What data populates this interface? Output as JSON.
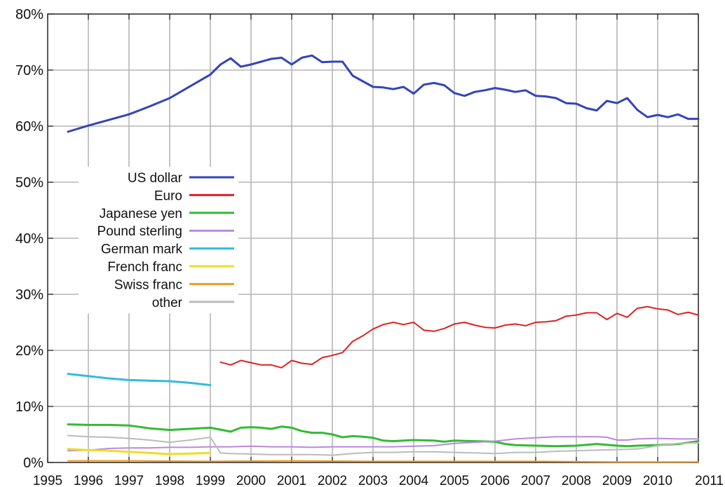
{
  "chart_data": {
    "type": "line",
    "title": "",
    "xlabel": "",
    "ylabel": "",
    "xlim": [
      1995,
      2011
    ],
    "ylim": [
      0,
      80
    ],
    "grid": true,
    "legend_position": "left-middle",
    "x_ticks": [
      "1995",
      "1996",
      "1997",
      "1998",
      "1999",
      "2000",
      "2001",
      "2002",
      "2003",
      "2004",
      "2005",
      "2006",
      "2007",
      "2008",
      "2009",
      "2010",
      "2011"
    ],
    "y_ticks": [
      "0%",
      "10%",
      "20%",
      "30%",
      "40%",
      "50%",
      "60%",
      "70%",
      "80%"
    ],
    "y_tick_values": [
      0,
      10,
      20,
      30,
      40,
      50,
      60,
      70,
      80
    ],
    "series": [
      {
        "name": "US dollar",
        "color": "#3344bb",
        "width": 3,
        "points": [
          [
            1995.5,
            59.0
          ],
          [
            1996.0,
            60.1
          ],
          [
            1996.5,
            61.1
          ],
          [
            1997.0,
            62.1
          ],
          [
            1997.5,
            63.5
          ],
          [
            1998.0,
            65.0
          ],
          [
            1998.5,
            67.1
          ],
          [
            1999.0,
            69.2
          ],
          [
            1999.25,
            71.0
          ],
          [
            1999.5,
            72.1
          ],
          [
            1999.75,
            70.6
          ],
          [
            2000.0,
            71.0
          ],
          [
            2000.25,
            71.5
          ],
          [
            2000.5,
            72.0
          ],
          [
            2000.75,
            72.2
          ],
          [
            2001.0,
            71.0
          ],
          [
            2001.25,
            72.2
          ],
          [
            2001.5,
            72.6
          ],
          [
            2001.75,
            71.4
          ],
          [
            2002.0,
            71.5
          ],
          [
            2002.25,
            71.5
          ],
          [
            2002.5,
            69.0
          ],
          [
            2002.75,
            68.0
          ],
          [
            2003.0,
            67.0
          ],
          [
            2003.25,
            66.9
          ],
          [
            2003.5,
            66.6
          ],
          [
            2003.75,
            67.0
          ],
          [
            2004.0,
            65.8
          ],
          [
            2004.25,
            67.4
          ],
          [
            2004.5,
            67.7
          ],
          [
            2004.75,
            67.3
          ],
          [
            2005.0,
            65.9
          ],
          [
            2005.25,
            65.4
          ],
          [
            2005.5,
            66.1
          ],
          [
            2005.75,
            66.4
          ],
          [
            2006.0,
            66.8
          ],
          [
            2006.25,
            66.5
          ],
          [
            2006.5,
            66.1
          ],
          [
            2006.75,
            66.4
          ],
          [
            2007.0,
            65.4
          ],
          [
            2007.25,
            65.3
          ],
          [
            2007.5,
            65.0
          ],
          [
            2007.75,
            64.1
          ],
          [
            2008.0,
            64.0
          ],
          [
            2008.25,
            63.2
          ],
          [
            2008.5,
            62.8
          ],
          [
            2008.75,
            64.5
          ],
          [
            2009.0,
            64.1
          ],
          [
            2009.25,
            65.0
          ],
          [
            2009.5,
            62.9
          ],
          [
            2009.75,
            61.6
          ],
          [
            2010.0,
            62.0
          ],
          [
            2010.25,
            61.6
          ],
          [
            2010.5,
            62.1
          ],
          [
            2010.75,
            61.3
          ],
          [
            2011.0,
            61.3
          ]
        ]
      },
      {
        "name": "Euro",
        "color": "#dd2222",
        "width": 2,
        "points": [
          [
            1999.25,
            17.9
          ],
          [
            1999.5,
            17.4
          ],
          [
            1999.75,
            18.2
          ],
          [
            2000.0,
            17.8
          ],
          [
            2000.25,
            17.4
          ],
          [
            2000.5,
            17.4
          ],
          [
            2000.75,
            16.9
          ],
          [
            2001.0,
            18.2
          ],
          [
            2001.25,
            17.7
          ],
          [
            2001.5,
            17.5
          ],
          [
            2001.75,
            18.7
          ],
          [
            2002.0,
            19.1
          ],
          [
            2002.25,
            19.6
          ],
          [
            2002.5,
            21.6
          ],
          [
            2002.75,
            22.6
          ],
          [
            2003.0,
            23.8
          ],
          [
            2003.25,
            24.6
          ],
          [
            2003.5,
            25.0
          ],
          [
            2003.75,
            24.6
          ],
          [
            2004.0,
            25.0
          ],
          [
            2004.25,
            23.6
          ],
          [
            2004.5,
            23.4
          ],
          [
            2004.75,
            23.9
          ],
          [
            2005.0,
            24.7
          ],
          [
            2005.25,
            25.0
          ],
          [
            2005.5,
            24.5
          ],
          [
            2005.75,
            24.1
          ],
          [
            2006.0,
            24.0
          ],
          [
            2006.25,
            24.5
          ],
          [
            2006.5,
            24.7
          ],
          [
            2006.75,
            24.4
          ],
          [
            2007.0,
            25.0
          ],
          [
            2007.25,
            25.1
          ],
          [
            2007.5,
            25.3
          ],
          [
            2007.75,
            26.1
          ],
          [
            2008.0,
            26.3
          ],
          [
            2008.25,
            26.7
          ],
          [
            2008.5,
            26.7
          ],
          [
            2008.75,
            25.5
          ],
          [
            2009.0,
            26.6
          ],
          [
            2009.25,
            25.9
          ],
          [
            2009.5,
            27.5
          ],
          [
            2009.75,
            27.8
          ],
          [
            2010.0,
            27.4
          ],
          [
            2010.25,
            27.2
          ],
          [
            2010.5,
            26.4
          ],
          [
            2010.75,
            26.8
          ],
          [
            2011.0,
            26.3
          ]
        ]
      },
      {
        "name": "Japanese yen",
        "color": "#33bb33",
        "width": 3,
        "points": [
          [
            1995.5,
            6.8
          ],
          [
            1996.0,
            6.7
          ],
          [
            1996.5,
            6.7
          ],
          [
            1997.0,
            6.6
          ],
          [
            1997.5,
            6.1
          ],
          [
            1998.0,
            5.8
          ],
          [
            1998.5,
            6.0
          ],
          [
            1999.0,
            6.2
          ],
          [
            1999.5,
            5.5
          ],
          [
            1999.75,
            6.2
          ],
          [
            2000.0,
            6.3
          ],
          [
            2000.25,
            6.2
          ],
          [
            2000.5,
            6.0
          ],
          [
            2000.75,
            6.4
          ],
          [
            2001.0,
            6.2
          ],
          [
            2001.25,
            5.6
          ],
          [
            2001.5,
            5.3
          ],
          [
            2001.75,
            5.3
          ],
          [
            2002.0,
            5.0
          ],
          [
            2002.25,
            4.5
          ],
          [
            2002.5,
            4.7
          ],
          [
            2002.75,
            4.6
          ],
          [
            2003.0,
            4.4
          ],
          [
            2003.25,
            3.9
          ],
          [
            2003.5,
            3.8
          ],
          [
            2003.75,
            3.9
          ],
          [
            2004.0,
            4.0
          ],
          [
            2004.5,
            3.9
          ],
          [
            2004.75,
            3.7
          ],
          [
            2005.0,
            3.9
          ],
          [
            2005.5,
            3.8
          ],
          [
            2006.0,
            3.7
          ],
          [
            2006.25,
            3.3
          ],
          [
            2006.5,
            3.1
          ],
          [
            2007.0,
            3.0
          ],
          [
            2007.5,
            2.9
          ],
          [
            2008.0,
            3.0
          ],
          [
            2008.5,
            3.3
          ],
          [
            2009.0,
            3.0
          ],
          [
            2009.25,
            2.9
          ],
          [
            2009.5,
            3.0
          ],
          [
            2010.0,
            3.1
          ],
          [
            2010.5,
            3.3
          ],
          [
            2011.0,
            3.8
          ]
        ]
      },
      {
        "name": "Pound sterling",
        "color": "#bb88dd",
        "width": 2,
        "points": [
          [
            1995.5,
            2.1
          ],
          [
            1996.0,
            2.2
          ],
          [
            1996.5,
            2.5
          ],
          [
            1997.0,
            2.6
          ],
          [
            1997.5,
            2.6
          ],
          [
            1998.0,
            2.7
          ],
          [
            1998.5,
            2.7
          ],
          [
            1999.0,
            2.8
          ],
          [
            1999.5,
            2.8
          ],
          [
            2000.0,
            2.9
          ],
          [
            2000.5,
            2.8
          ],
          [
            2001.0,
            2.8
          ],
          [
            2001.5,
            2.7
          ],
          [
            2002.0,
            2.8
          ],
          [
            2002.5,
            2.8
          ],
          [
            2003.0,
            2.8
          ],
          [
            2003.5,
            2.8
          ],
          [
            2004.0,
            2.9
          ],
          [
            2004.5,
            3.0
          ],
          [
            2005.0,
            3.4
          ],
          [
            2005.5,
            3.6
          ],
          [
            2006.0,
            3.8
          ],
          [
            2006.25,
            4.0
          ],
          [
            2006.5,
            4.2
          ],
          [
            2007.0,
            4.4
          ],
          [
            2007.5,
            4.6
          ],
          [
            2008.0,
            4.6
          ],
          [
            2008.5,
            4.6
          ],
          [
            2008.75,
            4.5
          ],
          [
            2009.0,
            4.0
          ],
          [
            2009.25,
            4.0
          ],
          [
            2009.5,
            4.2
          ],
          [
            2010.0,
            4.3
          ],
          [
            2010.5,
            4.2
          ],
          [
            2011.0,
            4.2
          ]
        ]
      },
      {
        "name": "German mark",
        "color": "#33bbdd",
        "width": 3,
        "points": [
          [
            1995.5,
            15.8
          ],
          [
            1996.0,
            15.4
          ],
          [
            1996.5,
            15.0
          ],
          [
            1997.0,
            14.7
          ],
          [
            1997.5,
            14.6
          ],
          [
            1998.0,
            14.5
          ],
          [
            1998.5,
            14.2
          ],
          [
            1999.0,
            13.8
          ]
        ]
      },
      {
        "name": "French franc",
        "color": "#eedd22",
        "width": 3,
        "points": [
          [
            1995.5,
            2.4
          ],
          [
            1996.0,
            2.2
          ],
          [
            1996.5,
            2.1
          ],
          [
            1997.0,
            1.9
          ],
          [
            1997.5,
            1.7
          ],
          [
            1998.0,
            1.5
          ],
          [
            1998.5,
            1.6
          ],
          [
            1999.0,
            1.7
          ]
        ]
      },
      {
        "name": "Swiss franc",
        "color": "#ee9922",
        "width": 2,
        "points": [
          [
            1995.5,
            0.3
          ],
          [
            1997.0,
            0.3
          ],
          [
            1999.0,
            0.2
          ],
          [
            2001.0,
            0.3
          ],
          [
            2003.0,
            0.2
          ],
          [
            2005.0,
            0.2
          ],
          [
            2007.0,
            0.2
          ],
          [
            2009.0,
            0.1
          ],
          [
            2011.0,
            0.1
          ]
        ]
      },
      {
        "name": "other",
        "color": "#bbbbbb",
        "width": 2,
        "points": [
          [
            1995.5,
            4.8
          ],
          [
            1996.0,
            4.6
          ],
          [
            1996.5,
            4.5
          ],
          [
            1997.0,
            4.3
          ],
          [
            1997.5,
            4.0
          ],
          [
            1998.0,
            3.6
          ],
          [
            1998.5,
            4.0
          ],
          [
            1999.0,
            4.5
          ],
          [
            1999.25,
            1.7
          ],
          [
            1999.5,
            1.6
          ],
          [
            2000.0,
            1.5
          ],
          [
            2000.5,
            1.4
          ],
          [
            2001.0,
            1.4
          ],
          [
            2001.5,
            1.4
          ],
          [
            2002.0,
            1.3
          ],
          [
            2002.5,
            1.6
          ],
          [
            2003.0,
            1.8
          ],
          [
            2003.5,
            1.8
          ],
          [
            2004.0,
            1.9
          ],
          [
            2004.5,
            1.9
          ],
          [
            2005.0,
            1.8
          ],
          [
            2005.5,
            1.7
          ],
          [
            2006.0,
            1.6
          ],
          [
            2006.5,
            1.8
          ],
          [
            2007.0,
            1.8
          ],
          [
            2007.5,
            2.0
          ],
          [
            2008.0,
            2.1
          ],
          [
            2008.5,
            2.2
          ],
          [
            2009.0,
            2.3
          ],
          [
            2009.5,
            2.4
          ],
          [
            2010.0,
            3.0
          ],
          [
            2010.5,
            3.4
          ],
          [
            2011.0,
            3.5
          ]
        ]
      }
    ]
  }
}
